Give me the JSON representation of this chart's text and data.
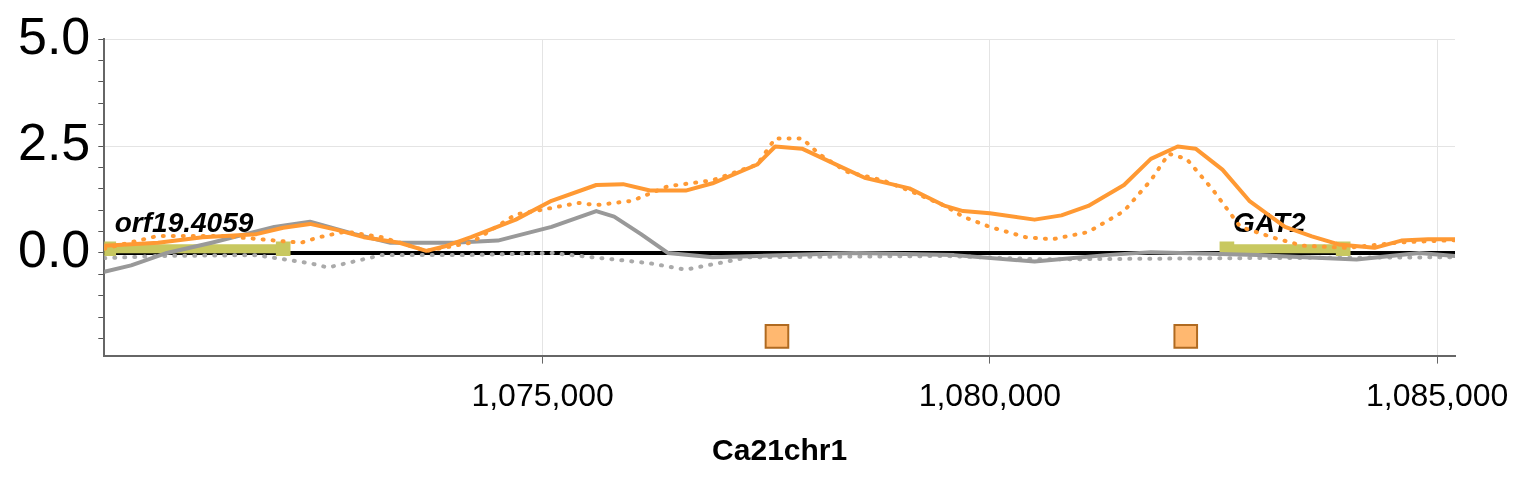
{
  "chart_data": {
    "type": "line",
    "xlabel": "Ca21chr1",
    "xlim": [
      1070100,
      1085200
    ],
    "xticks": [
      {
        "value": 1075000,
        "label": "1,075,000"
      },
      {
        "value": 1080000,
        "label": "1,080,000"
      },
      {
        "value": 1085000,
        "label": "1,085,000"
      }
    ],
    "ylim": [
      -2.4,
      5.0
    ],
    "yticks": [
      {
        "value": -2.0,
        "label": null
      },
      {
        "value": -1.5,
        "label": null
      },
      {
        "value": -1.0,
        "label": null
      },
      {
        "value": -0.5,
        "label": null
      },
      {
        "value": 0,
        "label": "0.0"
      },
      {
        "value": 0.5,
        "label": null
      },
      {
        "value": 1.0,
        "label": null
      },
      {
        "value": 1.5,
        "label": null
      },
      {
        "value": 2.0,
        "label": null
      },
      {
        "value": 2.5,
        "label": "2.5"
      },
      {
        "value": 3.0,
        "label": null
      },
      {
        "value": 3.5,
        "label": null
      },
      {
        "value": 4.0,
        "label": null
      },
      {
        "value": 4.5,
        "label": null
      },
      {
        "value": 5.0,
        "label": "5.0"
      }
    ],
    "grid": true,
    "legend": false,
    "marker": "none",
    "ref_lines": [
      {
        "axis": "y",
        "value": 0,
        "color": "#000000"
      }
    ],
    "annotations": [
      {
        "text": "orf19.4059",
        "x": 1070150,
        "y": 0.1
      },
      {
        "text": "GAT2",
        "x": 1082650,
        "y": 0.1
      }
    ],
    "series": [
      {
        "color": "#ff9933",
        "line_style": "solid",
        "x": [
          1070100,
          1070700,
          1071200,
          1071800,
          1072100,
          1072400,
          1072700,
          1073000,
          1073400,
          1073700,
          1073900,
          1074200,
          1074700,
          1075100,
          1075600,
          1075900,
          1076200,
          1076600,
          1076900,
          1077400,
          1077600,
          1077900,
          1078300,
          1078600,
          1078900,
          1079100,
          1079500,
          1079700,
          1080000,
          1080500,
          1080800,
          1081100,
          1081500,
          1081800,
          1082100,
          1082300,
          1082600,
          1082900,
          1083300,
          1083600,
          1083900,
          1084300,
          1084600,
          1084900,
          1085200
        ],
        "values": [
          0.17,
          0.24,
          0.37,
          0.44,
          0.59,
          0.68,
          0.54,
          0.37,
          0.24,
          0.05,
          0.15,
          0.37,
          0.78,
          1.22,
          1.59,
          1.61,
          1.46,
          1.46,
          1.63,
          2.07,
          2.49,
          2.44,
          2.05,
          1.76,
          1.61,
          1.51,
          1.1,
          0.98,
          0.93,
          0.78,
          0.88,
          1.1,
          1.59,
          2.2,
          2.49,
          2.44,
          1.95,
          1.22,
          0.61,
          0.39,
          0.2,
          0.12,
          0.29,
          0.32,
          0.32
        ]
      },
      {
        "color": "#ff9933",
        "line_style": "dotted",
        "x": [
          1070100,
          1070700,
          1071400,
          1072300,
          1072500,
          1072800,
          1073200,
          1073700,
          1074200,
          1074700,
          1075400,
          1075600,
          1076000,
          1076400,
          1076900,
          1077400,
          1077600,
          1077900,
          1078100,
          1078400,
          1078800,
          1079100,
          1079500,
          1079700,
          1080000,
          1080400,
          1080700,
          1081100,
          1081500,
          1081800,
          1082000,
          1082200,
          1082500,
          1082800,
          1083200,
          1083500,
          1084000,
          1084600,
          1085200
        ],
        "values": [
          0.1,
          0.4,
          0.4,
          0.24,
          0.37,
          0.5,
          0.37,
          0.05,
          0.24,
          0.9,
          1.17,
          1.12,
          1.22,
          1.56,
          1.7,
          2.07,
          2.68,
          2.68,
          2.3,
          1.9,
          1.7,
          1.46,
          1.1,
          0.85,
          0.61,
          0.37,
          0.32,
          0.49,
          0.98,
          1.7,
          2.32,
          2.2,
          1.46,
          0.61,
          0.34,
          0.17,
          0.12,
          0.25,
          0.3
        ]
      },
      {
        "color": "#999999",
        "line_style": "solid",
        "x": [
          1070100,
          1070400,
          1070800,
          1071300,
          1072000,
          1072400,
          1072900,
          1073300,
          1074000,
          1074500,
          1075100,
          1075600,
          1075800,
          1076100,
          1076400,
          1076900,
          1077400,
          1078500,
          1079600,
          1080500,
          1081300,
          1081800,
          1083000,
          1084100,
          1084800,
          1085200
        ],
        "values": [
          -0.44,
          -0.29,
          0,
          0.24,
          0.61,
          0.73,
          0.44,
          0.24,
          0.24,
          0.29,
          0.61,
          0.98,
          0.85,
          0.44,
          0,
          -0.1,
          -0.07,
          0,
          -0.05,
          -0.2,
          -0.05,
          0.02,
          -0.05,
          -0.15,
          0,
          -0.07
        ]
      },
      {
        "color": "#aaaaaa",
        "line_style": "dotted",
        "x": [
          1070100,
          1070700,
          1071800,
          1072400,
          1072600,
          1073200,
          1074100,
          1075100,
          1076200,
          1076600,
          1077300,
          1079500,
          1080600,
          1082900,
          1085200
        ],
        "values": [
          -0.12,
          -0.07,
          -0.05,
          -0.24,
          -0.34,
          -0.05,
          -0.05,
          0,
          -0.24,
          -0.39,
          -0.1,
          -0.07,
          -0.15,
          -0.12,
          -0.1
        ]
      },
      {
        "type": "line",
        "color": "#c8c860",
        "line_style": "solid",
        "marker": "square",
        "x": [
          1070150,
          1072100
        ],
        "values": [
          0.1,
          0.1
        ]
      },
      {
        "type": "line",
        "color": "#c8c860",
        "line_style": "solid",
        "marker": "square",
        "x": [
          1082650,
          1083950
        ],
        "values": [
          0.1,
          0.1
        ]
      },
      {
        "type": "scatter",
        "color": "#ffb870",
        "marker": "square",
        "x": [
          1077620,
          1082190
        ],
        "values": [
          -1.95,
          -1.95
        ]
      }
    ]
  }
}
